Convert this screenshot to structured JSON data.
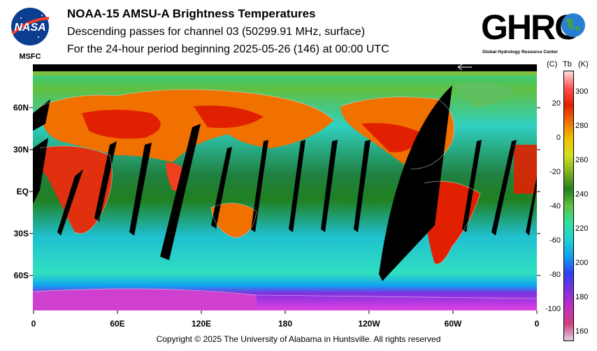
{
  "header": {
    "title": "NOAA-15 AMSU-A Brightness Temperatures",
    "subtitle": "Descending passes for channel 03 (50299.91 MHz, surface)",
    "period": "For the 24-hour period beginning 2025-05-26 (146) at 00:00 UTC"
  },
  "logos": {
    "nasa": {
      "text": "NASA",
      "caption": "MSFC"
    },
    "ghrc": {
      "text": "GHRC",
      "caption": "Global Hydrology Resource Center"
    }
  },
  "map": {
    "lat_labels": [
      "60N",
      "30N",
      "EQ",
      "30S",
      "60S"
    ],
    "lon_labels": [
      "0",
      "60E",
      "120E",
      "180",
      "120W",
      "60W",
      "0"
    ]
  },
  "colorbar": {
    "header_c": "(C)",
    "header_tb": "Tb",
    "header_k": "(K)",
    "celsius_ticks": [
      "20",
      "0",
      "-20",
      "-40",
      "-60",
      "-80",
      "-100"
    ],
    "kelvin_ticks": [
      "300",
      "280",
      "260",
      "240",
      "220",
      "200",
      "180",
      "160"
    ],
    "colors": [
      "#e0d0e0",
      "#d04080",
      "#c030c0",
      "#8030e0",
      "#3040f0",
      "#10a0f0",
      "#20d0d0",
      "#30e0a0",
      "#60c040",
      "#208020",
      "#80b020",
      "#d0e020",
      "#f0c000",
      "#f07000",
      "#e02000",
      "#ff5050",
      "#ffe0e0"
    ]
  },
  "footer": {
    "copyright": "Copyright © 2025 The University of Alabama in Huntsville.  All rights reserved"
  }
}
